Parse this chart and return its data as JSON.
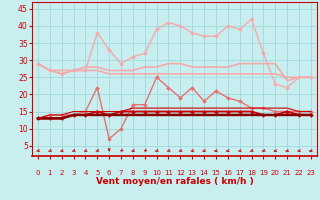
{
  "x": [
    0,
    1,
    2,
    3,
    4,
    5,
    6,
    7,
    8,
    9,
    10,
    11,
    12,
    13,
    14,
    15,
    16,
    17,
    18,
    19,
    20,
    21,
    22,
    23
  ],
  "series": [
    {
      "name": "rafales_light1",
      "color": "#F4AAAA",
      "lw": 1.0,
      "marker": "D",
      "markersize": 2.0,
      "values": [
        29,
        27,
        26,
        27,
        27,
        38,
        33,
        29,
        31,
        32,
        39,
        41,
        40,
        38,
        37,
        37,
        40,
        39,
        42,
        32,
        23,
        22,
        25,
        25
      ]
    },
    {
      "name": "rafales_light2",
      "color": "#F4AAAA",
      "lw": 1.2,
      "marker": null,
      "markersize": 0,
      "values": [
        29,
        27,
        26,
        27,
        28,
        28,
        27,
        27,
        27,
        28,
        28,
        29,
        29,
        28,
        28,
        28,
        28,
        29,
        29,
        29,
        29,
        24,
        25,
        25
      ]
    },
    {
      "name": "rafales_light3",
      "color": "#F4AAAA",
      "lw": 1.2,
      "marker": null,
      "markersize": 0,
      "values": [
        29,
        27,
        27,
        27,
        27,
        27,
        26,
        26,
        26,
        26,
        26,
        26,
        26,
        26,
        26,
        26,
        26,
        26,
        26,
        26,
        26,
        25,
        25,
        25
      ]
    },
    {
      "name": "moyen_med1",
      "color": "#E87070",
      "lw": 1.0,
      "marker": "D",
      "markersize": 2.0,
      "values": [
        13,
        14,
        14,
        14,
        15,
        22,
        7,
        10,
        17,
        17,
        25,
        22,
        19,
        22,
        18,
        21,
        19,
        18,
        16,
        16,
        15,
        15,
        15,
        15
      ]
    },
    {
      "name": "moyen_dark1",
      "color": "#CC0000",
      "lw": 1.3,
      "marker": "D",
      "markersize": 2.0,
      "values": [
        13,
        13,
        13,
        14,
        14,
        15,
        14,
        15,
        15,
        15,
        15,
        15,
        15,
        15,
        15,
        15,
        15,
        15,
        15,
        14,
        14,
        15,
        14,
        14
      ]
    },
    {
      "name": "moyen_dark2",
      "color": "#CC0000",
      "lw": 1.3,
      "marker": null,
      "markersize": 0,
      "values": [
        13,
        13,
        13,
        14,
        14,
        14,
        14,
        14,
        14,
        14,
        14,
        14,
        14,
        14,
        14,
        14,
        14,
        14,
        14,
        14,
        14,
        14,
        14,
        14
      ]
    },
    {
      "name": "moyen_dark3",
      "color": "#880000",
      "lw": 1.8,
      "marker": null,
      "markersize": 0,
      "values": [
        13,
        13,
        13,
        14,
        14,
        14,
        14,
        14,
        14,
        14,
        14,
        14,
        14,
        14,
        14,
        14,
        14,
        14,
        14,
        14,
        14,
        14,
        14,
        14
      ]
    },
    {
      "name": "moyen_dark4",
      "color": "#CC0000",
      "lw": 0.8,
      "marker": null,
      "markersize": 0,
      "values": [
        13,
        14,
        14,
        15,
        15,
        15,
        15,
        15,
        16,
        16,
        16,
        16,
        16,
        16,
        16,
        16,
        16,
        16,
        16,
        16,
        16,
        16,
        15,
        15
      ]
    }
  ],
  "arrow_angles": [
    225,
    225,
    220,
    225,
    220,
    225,
    270,
    240,
    225,
    240,
    225,
    225,
    225,
    220,
    215,
    210,
    215,
    220,
    225,
    230,
    215,
    215,
    215,
    210
  ],
  "xlabel": "Vent moyen/en rafales ( km/h )",
  "yticks": [
    5,
    10,
    15,
    20,
    25,
    30,
    35,
    40,
    45
  ],
  "xlim": [
    -0.5,
    23.5
  ],
  "ylim": [
    2,
    47
  ],
  "bg_color": "#C8EEF0",
  "grid_color": "#A0D8DC",
  "tick_color": "#CC0000",
  "label_color": "#CC0000",
  "arrow_color": "#CC0000",
  "xlabel_fontsize": 6.5,
  "ytick_fontsize": 5.5,
  "xtick_fontsize": 5.0
}
